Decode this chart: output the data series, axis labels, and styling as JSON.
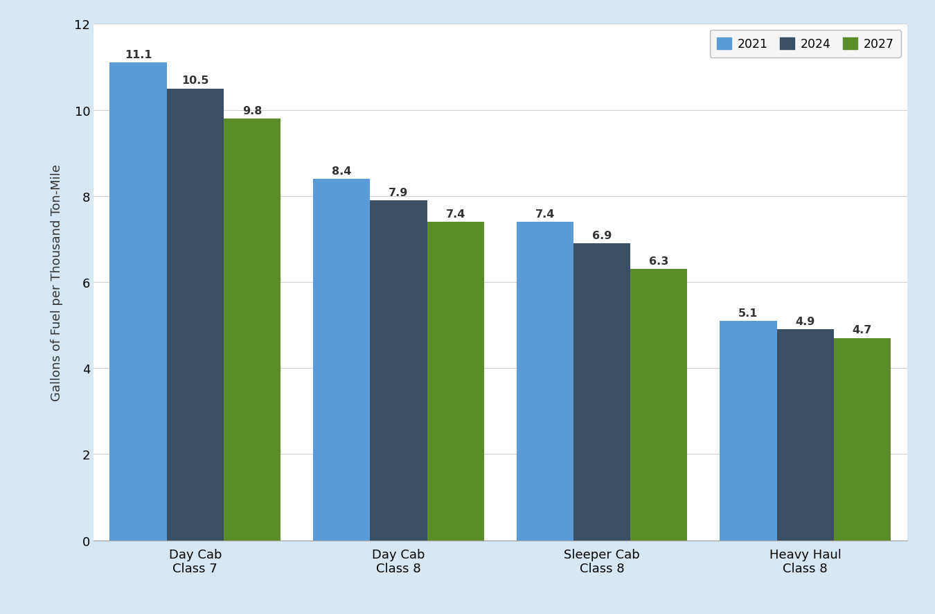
{
  "categories": [
    "Day Cab\nClass 7",
    "Day Cab\nClass 8",
    "Sleeper Cab\nClass 8",
    "Heavy Haul\nClass 8"
  ],
  "series": {
    "2021": [
      11.1,
      8.4,
      7.4,
      5.1
    ],
    "2024": [
      10.5,
      7.9,
      6.9,
      4.9
    ],
    "2027": [
      9.8,
      7.4,
      6.3,
      4.7
    ]
  },
  "bar_colors": {
    "2021": "#5B9BD5",
    "2024": "#3A4F63",
    "2027": "#5B8C2A"
  },
  "ylabel": "Gallons of Fuel per Thousand Ton-Mile",
  "ylim": [
    0,
    12
  ],
  "yticks": [
    0,
    2,
    4,
    6,
    8,
    10,
    12
  ],
  "legend_labels": [
    "2021",
    "2024",
    "2027"
  ],
  "bar_width": 0.28,
  "label_fontsize": 11.5,
  "tick_fontsize": 13,
  "ylabel_fontsize": 13,
  "legend_fontsize": 12.5,
  "background_color": "#D6E8F5",
  "plot_bg_color": "#FFFFFF",
  "border_color": "#A8C5DA",
  "grid_color": "#D0D0D0"
}
